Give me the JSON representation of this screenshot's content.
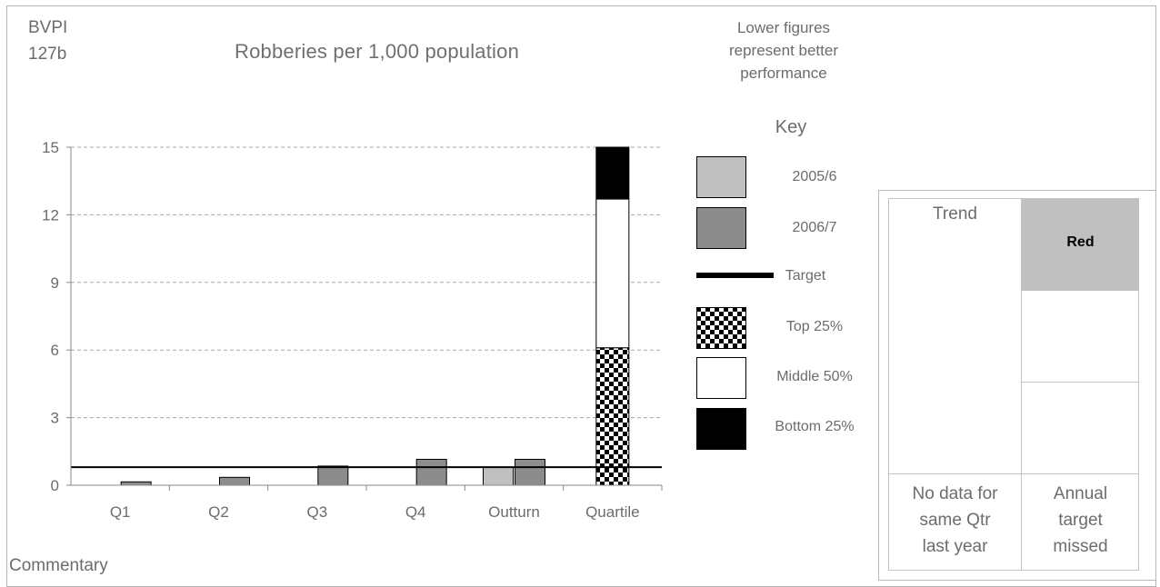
{
  "header": {
    "code_line1": "BVPI",
    "code_line2": "127b",
    "title": "Robberies per 1,000 population",
    "note_line1": "Lower figures",
    "note_line2": "represent better",
    "note_line3": "performance"
  },
  "key": {
    "title": "Key",
    "items": [
      "2005/6",
      "2006/7",
      "Target",
      "Top 25%",
      "Middle 50%",
      "Bottom 25%"
    ]
  },
  "colors": {
    "series_2005_6": "#c0c0c0",
    "series_2006_7": "#8c8c8c",
    "target_line": "#000000",
    "top_25": "checkered",
    "middle_50": "#ffffff",
    "bottom_25": "#000000",
    "status_red": "#c0c0c0"
  },
  "chart_data": {
    "type": "bar",
    "categories": [
      "Q1",
      "Q2",
      "Q3",
      "Q4",
      "Outturn",
      "Quartile"
    ],
    "series": [
      {
        "name": "2005/6",
        "values": [
          null,
          null,
          null,
          null,
          0.8,
          null
        ]
      },
      {
        "name": "2006/7",
        "values": [
          0.15,
          0.35,
          0.85,
          1.15,
          1.15,
          null
        ]
      }
    ],
    "quartile_bands": [
      {
        "name": "Top 25%",
        "from": 0,
        "to": 6.1
      },
      {
        "name": "Middle 50%",
        "from": 6.1,
        "to": 12.7
      },
      {
        "name": "Bottom 25%",
        "from": 12.7,
        "to": 15
      }
    ],
    "target": 0.8,
    "ylim": [
      0,
      15
    ],
    "yticks": [
      "0",
      "3",
      "6",
      "9",
      "12",
      "15"
    ],
    "grid": true,
    "legend_placement": "right"
  },
  "panel": {
    "trend_label": "Trend",
    "status_label": "Red",
    "trend_note_line1": "No data for",
    "trend_note_line2": "same Qtr",
    "trend_note_line3": "last year",
    "status_note_line1": "Annual",
    "status_note_line2": "target",
    "status_note_line3": "missed"
  },
  "footer": {
    "commentary_label": "Commentary"
  }
}
